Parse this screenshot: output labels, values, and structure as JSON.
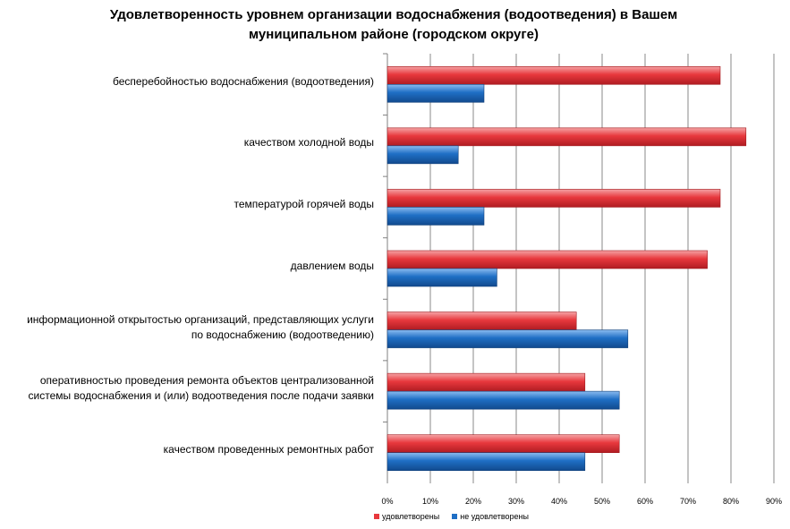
{
  "chart_data": {
    "type": "bar",
    "orientation": "horizontal",
    "title": [
      "Удовлетворенность уровнем организации водоснабжения (водоотведения) в Вашем",
      "муниципальном районе (городском округе)"
    ],
    "categories": [
      [
        "бесперебойностью  водоснабжения (водоотведения)"
      ],
      [
        "качеством холодной воды"
      ],
      [
        "температурой  горячей воды"
      ],
      [
        "давлением воды"
      ],
      [
        "информационной открытостью  организаций, представляющих услуги",
        "по водоснабжению (водоотведению)"
      ],
      [
        "оперативностью проведения ремонта  объектов централизованной",
        "системы водоснабжения и (или) водоотведения после подачи заявки"
      ],
      [
        "качеством проведенных ремонтных  работ"
      ]
    ],
    "series": [
      {
        "name": "удовлетворены",
        "color": "#e8383d",
        "values": [
          77.5,
          83.5,
          77.5,
          74.5,
          44,
          46,
          54
        ]
      },
      {
        "name": "не удовлетворены",
        "color": "#1f6fc5",
        "values": [
          22.5,
          16.5,
          22.5,
          25.5,
          56,
          54,
          46
        ]
      }
    ],
    "xlim": [
      0,
      90
    ],
    "xticks": [
      "0%",
      "10%",
      "20%",
      "30%",
      "40%",
      "50%",
      "60%",
      "70%",
      "80%",
      "90%"
    ],
    "grid": true,
    "legend": "bottom"
  }
}
